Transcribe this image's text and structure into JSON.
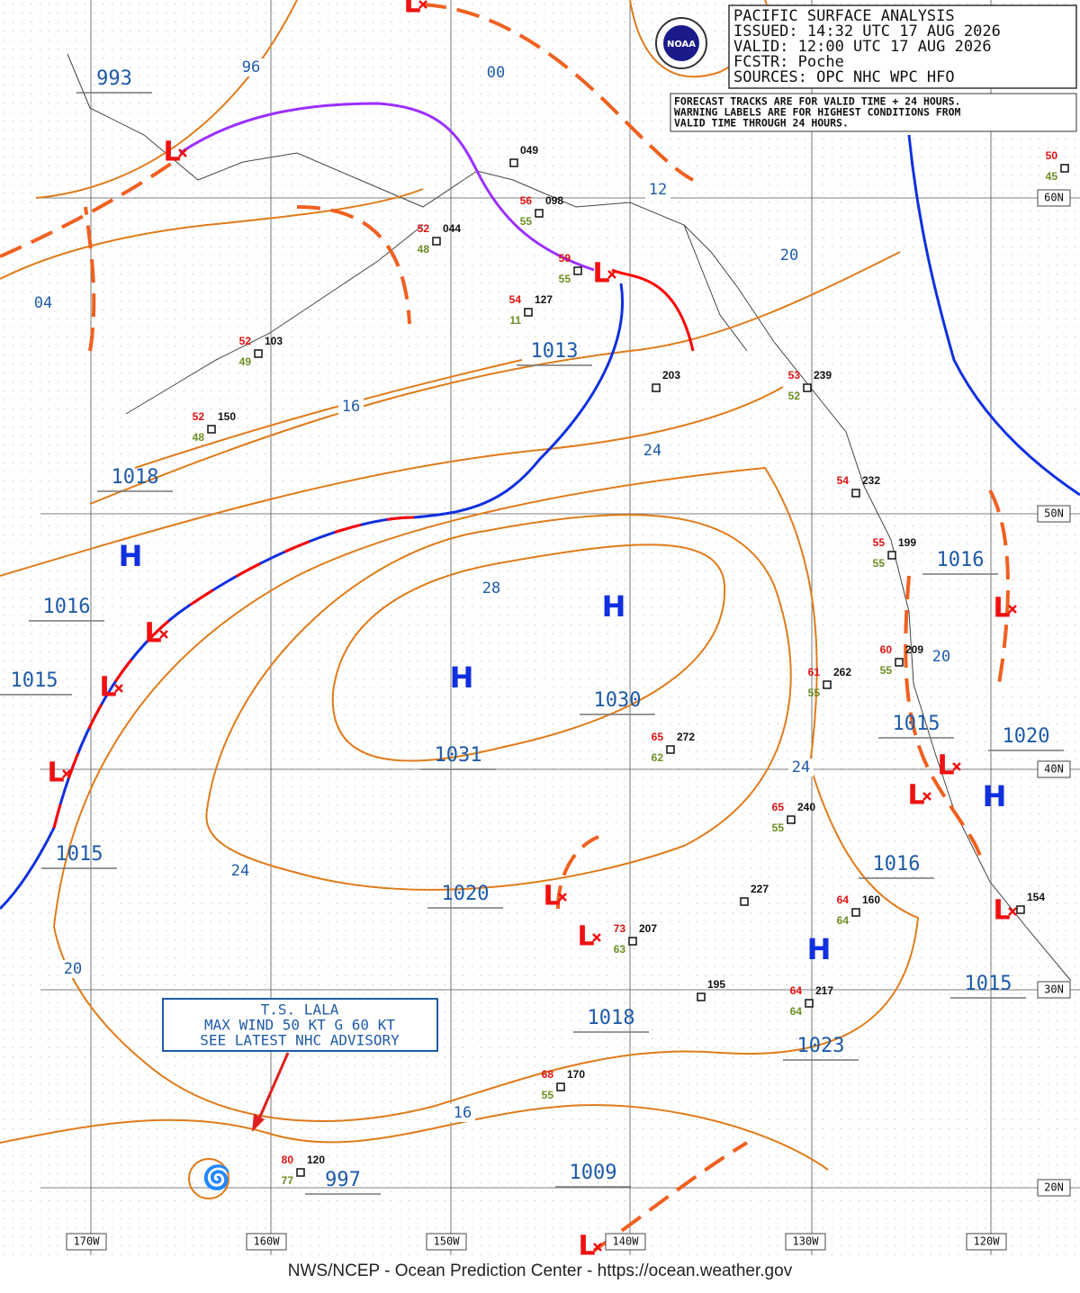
{
  "header": {
    "lines": [
      "PACIFIC SURFACE ANALYSIS",
      "ISSUED:  14:32 UTC 17 AUG 2026",
      "VALID:   12:00 UTC 17 AUG 2026",
      "FCSTR:   Poche",
      "SOURCES:  OPC NHC WPC HFO"
    ]
  },
  "logo": "NOAA",
  "note": {
    "lines": [
      "FORECAST TRACKS ARE FOR VALID TIME + 24 HOURS.",
      "WARNING LABELS ARE FOR HIGHEST CONDITIONS FROM",
      "VALID TIME THROUGH 24 HOURS."
    ]
  },
  "advisory": {
    "lines": [
      "T.S. LALA",
      "MAX WIND 50 KT G 60 KT",
      "SEE LATEST NHC ADVISORY"
    ]
  },
  "footer": "NWS/NCEP - Ocean Prediction Center - https://ocean.weather.gov",
  "latitude_labels": [
    "60N",
    "50N",
    "40N",
    "30N",
    "20N"
  ],
  "longitude_labels": [
    "170W",
    "160W",
    "150W",
    "140W",
    "130W",
    "120W"
  ],
  "central_pressures": [
    "993",
    "1013",
    "1018",
    "1016",
    "1015",
    "1030",
    "1031",
    "1016",
    "1015",
    "1020",
    "1015",
    "1016",
    "1020",
    "1018",
    "1015",
    "1023",
    "1009",
    "997"
  ],
  "isobar_labels": [
    "96",
    "00",
    "04",
    "12",
    "20",
    "16",
    "24",
    "28",
    "20",
    "24",
    "24",
    "20",
    "16"
  ],
  "highs": [
    "H",
    "H",
    "H",
    "H",
    "H"
  ],
  "lows": [
    "L",
    "L",
    "L",
    "L",
    "L",
    "L",
    "L",
    "L",
    "L",
    "L",
    "L",
    "L",
    "L"
  ],
  "stations": [
    {
      "pressure": "049"
    },
    {
      "temperature": 56,
      "dewpoint": 55,
      "pressure": "098"
    },
    {
      "temperature": 52,
      "dewpoint": 48,
      "pressure": "044"
    },
    {
      "temperature": 59,
      "dewpoint": 55
    },
    {
      "temperature": 54,
      "dewpoint": 11,
      "pressure": "127"
    },
    {
      "temperature": 52,
      "dewpoint": 49,
      "pressure": "103"
    },
    {
      "temperature": 52,
      "dewpoint": 48,
      "pressure": "150"
    },
    {
      "pressure": "203"
    },
    {
      "temperature": 53,
      "dewpoint": 52,
      "pressure": "239"
    },
    {
      "temperature": 54,
      "pressure": "232"
    },
    {
      "temperature": 55,
      "dewpoint": 55,
      "pressure": "199"
    },
    {
      "temperature": 60,
      "dewpoint": 55,
      "pressure": "209"
    },
    {
      "temperature": 61,
      "dewpoint": 55,
      "pressure": "262"
    },
    {
      "temperature": 65,
      "dewpoint": 62,
      "pressure": "272"
    },
    {
      "temperature": 65,
      "dewpoint": 55,
      "pressure": "240"
    },
    {
      "temperature": 64,
      "dewpoint": 64,
      "pressure": "160"
    },
    {
      "pressure": "227"
    },
    {
      "temperature": 73,
      "dewpoint": 63,
      "pressure": "207"
    },
    {
      "pressure": "195"
    },
    {
      "temperature": 64,
      "dewpoint": 64,
      "pressure": "217"
    },
    {
      "temperature": 68,
      "dewpoint": 55,
      "pressure": "170"
    },
    {
      "temperature": 80,
      "dewpoint": 77,
      "pressure": "120"
    },
    {
      "pressure": "154"
    },
    {
      "temperature": 50,
      "dewpoint": 45
    }
  ]
}
